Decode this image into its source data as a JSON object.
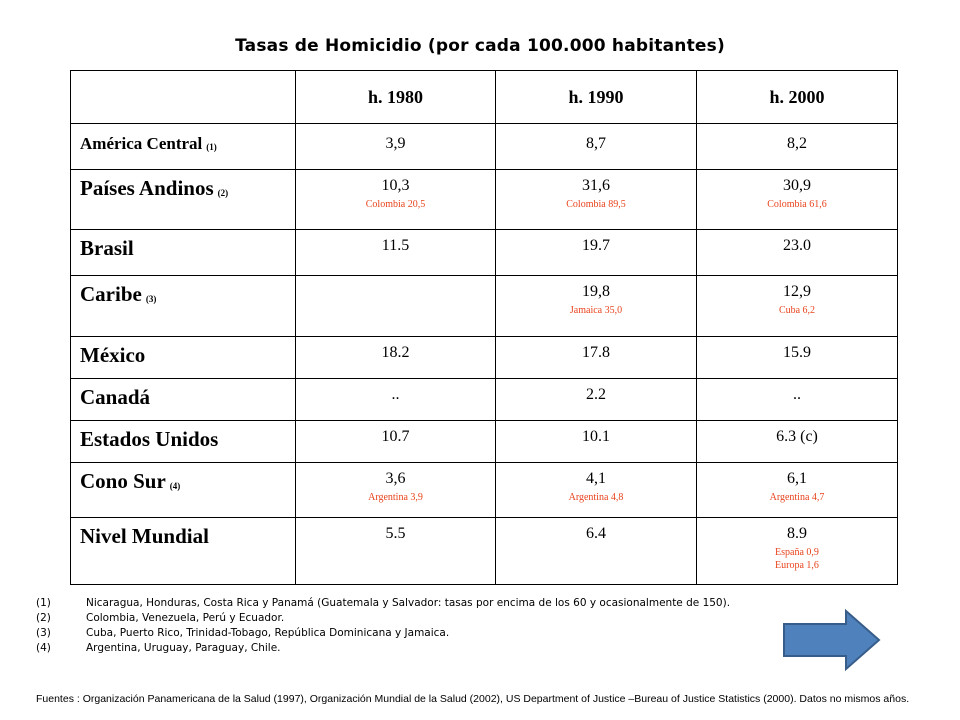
{
  "title": "Tasas de Homicidio (por cada 100.000 habitantes)",
  "headers": [
    "",
    "h. 1980",
    "h. 1990",
    "h. 2000"
  ],
  "rows": [
    {
      "name": "América Central",
      "note": "(1)",
      "small": true,
      "rh": 46,
      "cells": [
        {
          "main": "3,9",
          "sub": ""
        },
        {
          "main": "8,7",
          "sub": ""
        },
        {
          "main": "8,2",
          "sub": ""
        }
      ]
    },
    {
      "name": "Países Andinos",
      "note": "(2)",
      "small": false,
      "rh": 60,
      "cells": [
        {
          "main": "10,3",
          "sub": "Colombia 20,5"
        },
        {
          "main": "31,6",
          "sub": "Colombia 89,5"
        },
        {
          "main": "30,9",
          "sub": "Colombia 61,6"
        }
      ]
    },
    {
      "name": "Brasil",
      "note": "",
      "small": false,
      "rh": 46,
      "cells": [
        {
          "main": "11.5",
          "sub": ""
        },
        {
          "main": "19.7",
          "sub": ""
        },
        {
          "main": "23.0",
          "sub": ""
        }
      ]
    },
    {
      "name": "Caribe",
      "note": "(3)",
      "small": false,
      "rh": 61,
      "cells": [
        {
          "main": "",
          "sub": ""
        },
        {
          "main": "19,8",
          "sub": "Jamaica 35,0"
        },
        {
          "main": "12,9",
          "sub": "Cuba 6,2"
        }
      ]
    },
    {
      "name": "México",
      "note": "",
      "small": false,
      "rh": 42,
      "cells": [
        {
          "main": "18.2",
          "sub": ""
        },
        {
          "main": "17.8",
          "sub": ""
        },
        {
          "main": "15.9",
          "sub": ""
        }
      ]
    },
    {
      "name": "Canadá",
      "note": "",
      "small": false,
      "rh": 42,
      "cells": [
        {
          "main": "..",
          "sub": ""
        },
        {
          "main": "2.2",
          "sub": ""
        },
        {
          "main": "..",
          "sub": ""
        }
      ]
    },
    {
      "name": "Estados Unidos",
      "note": "",
      "small": false,
      "rh": 42,
      "cells": [
        {
          "main": "10.7",
          "sub": ""
        },
        {
          "main": "10.1",
          "sub": ""
        },
        {
          "main": "6.3 (c)",
          "sub": ""
        }
      ]
    },
    {
      "name": "Cono Sur",
      "note": "(4)",
      "small": false,
      "rh": 55,
      "cells": [
        {
          "main": "3,6",
          "sub": "Argentina 3,9"
        },
        {
          "main": "4,1",
          "sub": "Argentina 4,8"
        },
        {
          "main": "6,1",
          "sub": "Argentina 4,7"
        }
      ]
    },
    {
      "name": "Nivel Mundial",
      "note": "",
      "small": false,
      "rh": 67,
      "cells": [
        {
          "main": "5.5",
          "sub": ""
        },
        {
          "main": "6.4",
          "sub": ""
        },
        {
          "main": "8.9",
          "sub": "España 0,9",
          "sub2": "Europa 1,6"
        }
      ]
    }
  ],
  "footnotes": [
    {
      "num": "(1)",
      "text": "Nicaragua, Honduras, Costa Rica y Panamá (Guatemala y Salvador: tasas por encima de los 60 y ocasionalmente de 150)."
    },
    {
      "num": "(2)",
      "text": "Colombia, Venezuela, Perú y Ecuador."
    },
    {
      "num": "(3)",
      "text": "Cuba, Puerto Rico, Trinidad-Tobago, República Dominicana y Jamaica."
    },
    {
      "num": "(4)",
      "text": "Argentina, Uruguay, Paraguay, Chile."
    }
  ],
  "sources": "Fuentes : Organización Panamericana de la Salud (1997), Organización Mundial de la Salud (2002), US Department of Justice –Bureau of Justice Statistics (2000). Datos no mismos años.",
  "arrow": {
    "icon": "arrow-right-icon",
    "fill": "#4f81bd",
    "stroke": "#385d8a"
  }
}
